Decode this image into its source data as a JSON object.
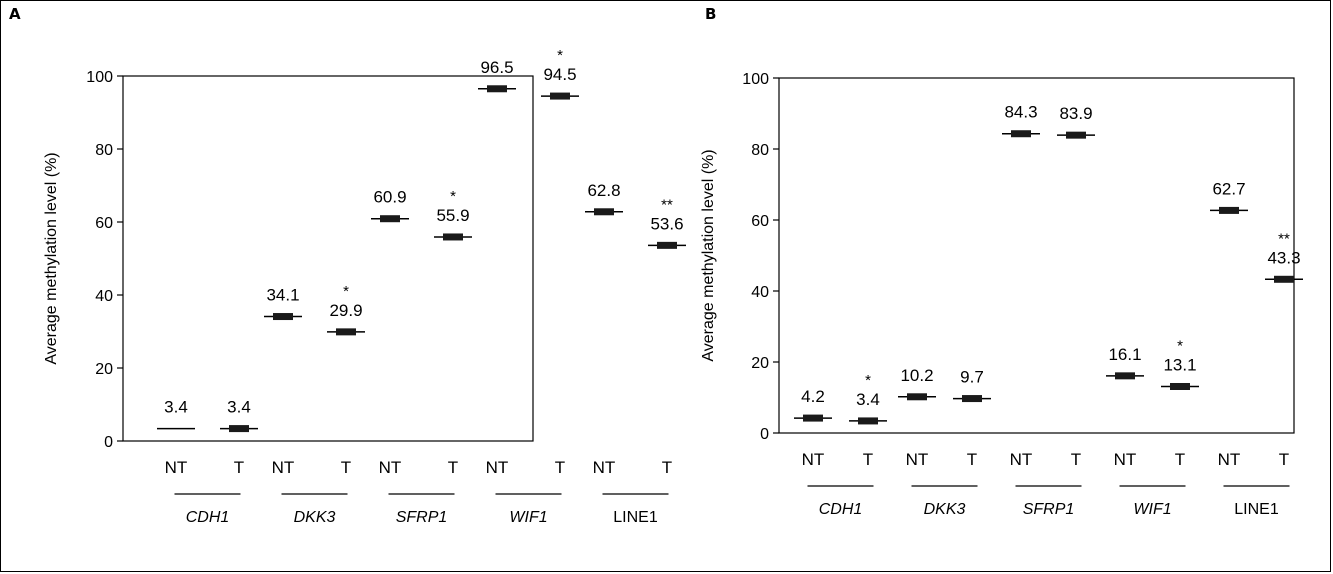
{
  "figure": {
    "panels": [
      "A",
      "B"
    ]
  },
  "chart_data": [
    {
      "type": "scatter",
      "panel": "A",
      "ylabel": "Average methylation level (%)",
      "ylim": [
        0,
        100
      ],
      "yticks": [
        0,
        20,
        40,
        60,
        80,
        100
      ],
      "sample_labels": [
        "NT",
        "T"
      ],
      "groups": [
        {
          "gene": "CDH1",
          "italic": true,
          "values": [
            3.4,
            3.4
          ],
          "labels": [
            "3.4",
            "3.4"
          ],
          "stars": [
            "",
            ""
          ]
        },
        {
          "gene": "DKK3",
          "italic": true,
          "values": [
            34.1,
            29.9
          ],
          "labels": [
            "34.1",
            "29.9"
          ],
          "stars": [
            "",
            "*"
          ]
        },
        {
          "gene": "SFRP1",
          "italic": true,
          "values": [
            60.9,
            55.9
          ],
          "labels": [
            "60.9",
            "55.9"
          ],
          "stars": [
            "",
            "*"
          ]
        },
        {
          "gene": "WIF1",
          "italic": true,
          "values": [
            96.5,
            94.5
          ],
          "labels": [
            "96.5",
            "94.5"
          ],
          "stars": [
            "",
            "*"
          ]
        },
        {
          "gene": "LINE1",
          "italic": false,
          "values": [
            62.8,
            53.6
          ],
          "labels": [
            "62.8",
            "53.6"
          ],
          "stars": [
            "",
            "**"
          ]
        }
      ]
    },
    {
      "type": "scatter",
      "panel": "B",
      "ylabel": "Average methylation level (%)",
      "ylim": [
        0,
        100
      ],
      "yticks": [
        0,
        20,
        40,
        60,
        80,
        100
      ],
      "sample_labels": [
        "NT",
        "T"
      ],
      "groups": [
        {
          "gene": "CDH1",
          "italic": true,
          "values": [
            4.2,
            3.4
          ],
          "labels": [
            "4.2",
            "3.4"
          ],
          "stars": [
            "",
            "*"
          ]
        },
        {
          "gene": "DKK3",
          "italic": true,
          "values": [
            10.2,
            9.7
          ],
          "labels": [
            "10.2",
            "9.7"
          ],
          "stars": [
            "",
            ""
          ]
        },
        {
          "gene": "SFRP1",
          "italic": true,
          "values": [
            84.3,
            83.9
          ],
          "labels": [
            "84.3",
            "83.9"
          ],
          "stars": [
            "",
            ""
          ]
        },
        {
          "gene": "WIF1",
          "italic": true,
          "values": [
            16.1,
            13.1
          ],
          "labels": [
            "16.1",
            "13.1"
          ],
          "stars": [
            "",
            "*"
          ]
        },
        {
          "gene": "LINE1",
          "italic": false,
          "values": [
            62.7,
            43.3
          ],
          "labels": [
            "62.7",
            "43.3"
          ],
          "stars": [
            "",
            "**"
          ]
        }
      ]
    }
  ]
}
